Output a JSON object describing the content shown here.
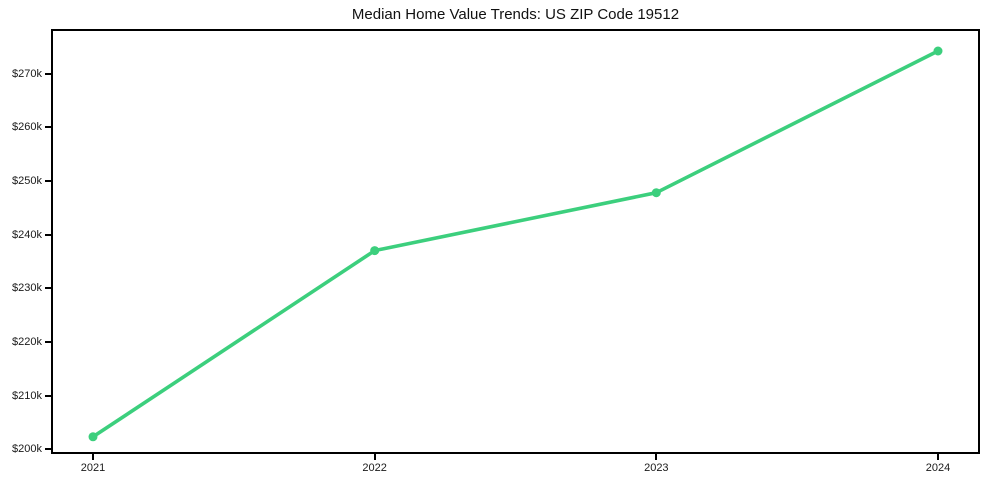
{
  "chart_data": {
    "type": "line",
    "title": "Median Home Value Trends: US ZIP Code 19512",
    "x": [
      "2021",
      "2022",
      "2023",
      "2024"
    ],
    "series": [
      {
        "name": "Median home value",
        "values": [
          202300,
          237000,
          247800,
          274200
        ]
      }
    ],
    "xlabel": "",
    "ylabel": "",
    "ylim": [
      199100,
      278300
    ],
    "yticks": [
      {
        "value": 200000,
        "label": "$200k"
      },
      {
        "value": 210000,
        "label": "$210k"
      },
      {
        "value": 220000,
        "label": "$220k"
      },
      {
        "value": 230000,
        "label": "$230k"
      },
      {
        "value": 240000,
        "label": "$240k"
      },
      {
        "value": 250000,
        "label": "$250k"
      },
      {
        "value": 260000,
        "label": "$260k"
      },
      {
        "value": 270000,
        "label": "$270k"
      }
    ],
    "grid": false,
    "legend": "none",
    "line_color": "#3ccf7d",
    "marker": "circle",
    "marker_size": 9,
    "line_width": 3.6,
    "spine_color": "#000000",
    "background_color": "#ffffff"
  }
}
